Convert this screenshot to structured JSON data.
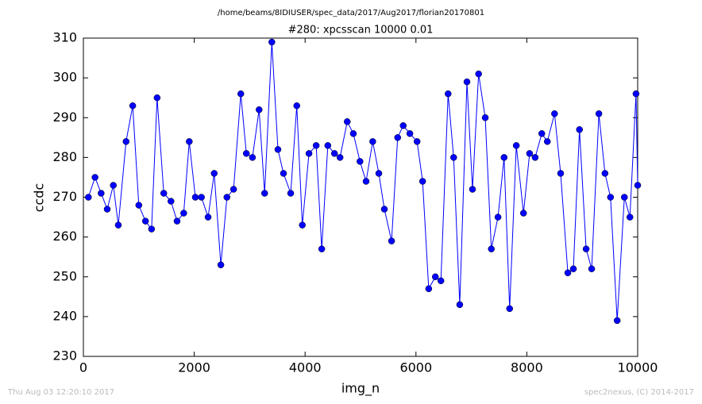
{
  "chart_data": {
    "type": "line",
    "suptitle": "/home/beams/8IDIUSER/spec_data/2017/Aug2017/florian20170801",
    "title": "#280: xpcsscan 10000 0.01",
    "x_label": "img_n",
    "y_label": "ccdc",
    "footer_left": "Thu Aug 03 12:20:10 2017",
    "footer_right": "spec2nexus, (C) 2014-2017",
    "color": "#0000ff",
    "marker_edge": "#000000",
    "xlim": [
      0,
      10000
    ],
    "ylim": [
      230,
      310
    ],
    "xticks": [
      0,
      2000,
      4000,
      6000,
      8000,
      10000
    ],
    "yticks": [
      230,
      240,
      250,
      260,
      270,
      280,
      290,
      300,
      310
    ],
    "x": [
      90,
      210,
      320,
      430,
      540,
      630,
      770,
      890,
      1000,
      1120,
      1230,
      1330,
      1450,
      1580,
      1690,
      1810,
      1910,
      2020,
      2130,
      2250,
      2360,
      2480,
      2590,
      2710,
      2840,
      2940,
      3050,
      3170,
      3270,
      3400,
      3510,
      3610,
      3740,
      3850,
      3950,
      4070,
      4200,
      4300,
      4410,
      4530,
      4630,
      4760,
      4870,
      4990,
      5100,
      5220,
      5330,
      5430,
      5560,
      5670,
      5770,
      5890,
      6020,
      6120,
      6230,
      6350,
      6450,
      6580,
      6680,
      6790,
      6920,
      7020,
      7130,
      7250,
      7360,
      7480,
      7590,
      7690,
      7810,
      7940,
      8050,
      8150,
      8270,
      8370,
      8500,
      8610,
      8740,
      8840,
      8950,
      9070,
      9170,
      9300,
      9410,
      9510,
      9630,
      9760,
      9860,
      9970,
      10000
    ],
    "values": [
      270,
      275,
      271,
      267,
      273,
      263,
      284,
      293,
      268,
      264,
      262,
      295,
      271,
      269,
      264,
      266,
      284,
      270,
      270,
      265,
      276,
      253,
      270,
      272,
      296,
      281,
      280,
      292,
      271,
      309,
      282,
      276,
      271,
      293,
      263,
      281,
      283,
      257,
      283,
      281,
      280,
      289,
      286,
      279,
      274,
      284,
      276,
      267,
      259,
      285,
      288,
      286,
      284,
      274,
      247,
      250,
      249,
      296,
      280,
      243,
      299,
      272,
      301,
      290,
      257,
      265,
      280,
      242,
      283,
      266,
      281,
      280,
      286,
      284,
      291,
      276,
      251,
      252,
      287,
      257,
      252,
      291,
      276,
      270,
      239,
      270,
      265,
      296,
      273
    ]
  }
}
